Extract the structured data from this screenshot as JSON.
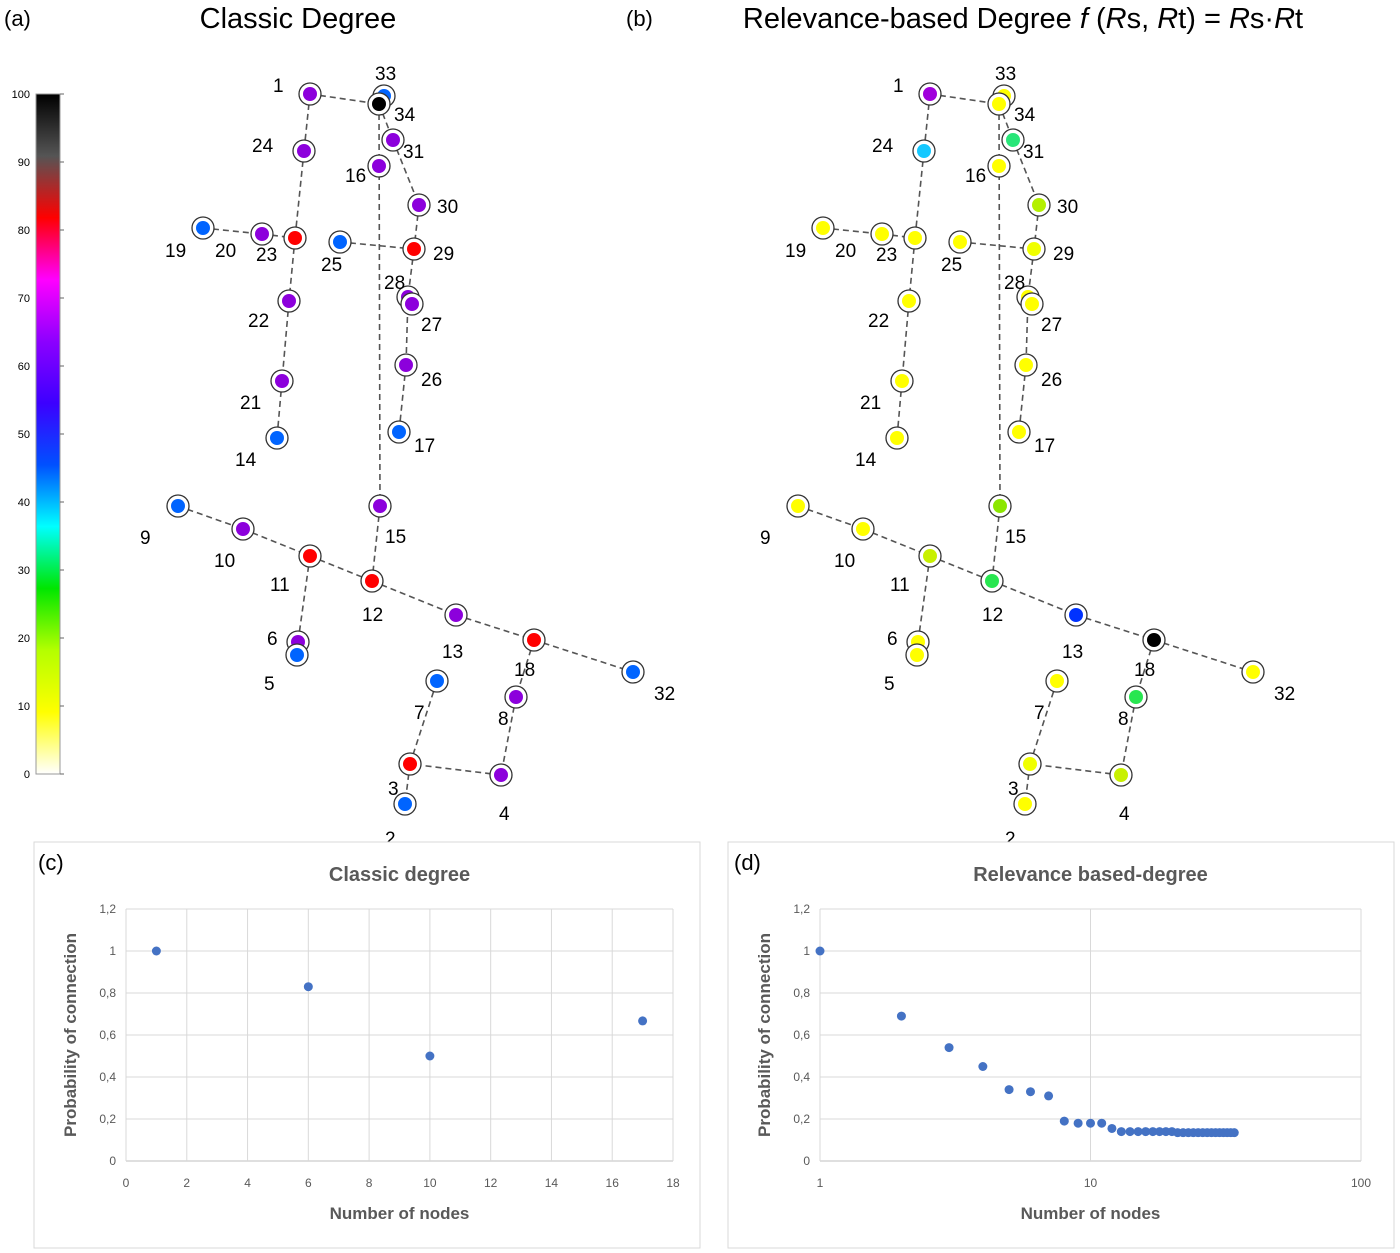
{
  "panels": {
    "a": {
      "tag": "(a)",
      "title": "Classic Degree"
    },
    "b": {
      "tag": "(b)",
      "title_parts": [
        "Relevance-based Degree ",
        "f",
        " (",
        "R",
        "s, ",
        "R",
        "t) = ",
        "R",
        "s·",
        "R",
        "t"
      ]
    },
    "c": {
      "tag": "(c)"
    },
    "d": {
      "tag": "(d)"
    }
  },
  "colorbar": {
    "ticks": [
      "0",
      "10",
      "20",
      "30",
      "40",
      "50",
      "60",
      "70",
      "80",
      "90",
      "100"
    ],
    "stops": [
      "#ffffff",
      "#ffff00",
      "#b4ff00",
      "#00e600",
      "#00ffff",
      "#0050ff",
      "#3c00ff",
      "#8c00ff",
      "#ff00ff",
      "#ff0000",
      "#555555",
      "#000000"
    ]
  },
  "network": {
    "edges": [
      [
        1,
        34
      ],
      [
        1,
        24
      ],
      [
        33,
        34
      ],
      [
        34,
        31
      ],
      [
        31,
        30
      ],
      [
        30,
        29
      ],
      [
        34,
        15
      ],
      [
        24,
        23
      ],
      [
        19,
        20
      ],
      [
        20,
        23
      ],
      [
        23,
        22
      ],
      [
        22,
        21
      ],
      [
        21,
        14
      ],
      [
        25,
        29
      ],
      [
        29,
        28
      ],
      [
        28,
        27
      ],
      [
        28,
        26
      ],
      [
        26,
        17
      ],
      [
        15,
        12
      ],
      [
        9,
        10
      ],
      [
        10,
        11
      ],
      [
        11,
        12
      ],
      [
        12,
        13
      ],
      [
        13,
        18
      ],
      [
        18,
        32
      ],
      [
        11,
        6
      ],
      [
        6,
        5
      ],
      [
        18,
        8
      ],
      [
        8,
        4
      ],
      [
        4,
        3
      ],
      [
        3,
        7
      ],
      [
        3,
        2
      ]
    ],
    "nodes": [
      {
        "id": "1",
        "ca": "#8c00dc",
        "cb": "#a000dc"
      },
      {
        "id": "33",
        "ca": "#0064ff",
        "cb": "#ffff00"
      },
      {
        "id": "34",
        "ca": "#000000",
        "cb": "#ffff00"
      },
      {
        "id": "24",
        "ca": "#8c00dc",
        "cb": "#14c8ff"
      },
      {
        "id": "31",
        "ca": "#8c00dc",
        "cb": "#28e678"
      },
      {
        "id": "16",
        "ca": "#8c00dc",
        "cb": "#ffff00"
      },
      {
        "id": "30",
        "ca": "#8c00dc",
        "cb": "#b4f000"
      },
      {
        "id": "19",
        "ca": "#0064ff",
        "cb": "#ffff00"
      },
      {
        "id": "20",
        "ca": "#8c00dc",
        "cb": "#ffff00"
      },
      {
        "id": "23",
        "ca": "#ff0000",
        "cb": "#ffff00"
      },
      {
        "id": "25",
        "ca": "#0064ff",
        "cb": "#ffff00"
      },
      {
        "id": "29",
        "ca": "#ff0000",
        "cb": "#f0ff00"
      },
      {
        "id": "28",
        "ca": "#8c00dc",
        "cb": "#ffff00"
      },
      {
        "id": "27",
        "ca": "#8c00dc",
        "cb": "#ffff00"
      },
      {
        "id": "22",
        "ca": "#8c00dc",
        "cb": "#ffff00"
      },
      {
        "id": "26",
        "ca": "#8c00dc",
        "cb": "#ffff00"
      },
      {
        "id": "21",
        "ca": "#8c00dc",
        "cb": "#ffff00"
      },
      {
        "id": "14",
        "ca": "#0064ff",
        "cb": "#ffff00"
      },
      {
        "id": "17",
        "ca": "#0064ff",
        "cb": "#ffff00"
      },
      {
        "id": "9",
        "ca": "#0064ff",
        "cb": "#ffff00"
      },
      {
        "id": "15",
        "ca": "#8c00dc",
        "cb": "#8ce600"
      },
      {
        "id": "10",
        "ca": "#8c00dc",
        "cb": "#ffff00"
      },
      {
        "id": "11",
        "ca": "#ff0000",
        "cb": "#c8f000"
      },
      {
        "id": "12",
        "ca": "#ff0000",
        "cb": "#28e650"
      },
      {
        "id": "13",
        "ca": "#8c00dc",
        "cb": "#0032ff"
      },
      {
        "id": "18",
        "ca": "#ff0000",
        "cb": "#000000"
      },
      {
        "id": "6",
        "ca": "#8c00dc",
        "cb": "#ffff00"
      },
      {
        "id": "5",
        "ca": "#0064ff",
        "cb": "#ffff00"
      },
      {
        "id": "32",
        "ca": "#0064ff",
        "cb": "#ffff00"
      },
      {
        "id": "7",
        "ca": "#0064ff",
        "cb": "#ffff00"
      },
      {
        "id": "8",
        "ca": "#8c00dc",
        "cb": "#28e650"
      },
      {
        "id": "3",
        "ca": "#ff0000",
        "cb": "#f0ff00"
      },
      {
        "id": "4",
        "ca": "#8c00dc",
        "cb": "#c8f000"
      },
      {
        "id": "2",
        "ca": "#0064ff",
        "cb": "#ffff00"
      }
    ]
  },
  "chart_data": [
    {
      "type": "scatter",
      "title": "Classic degree",
      "xlabel": "Number of nodes",
      "ylabel": "Probability of connection",
      "xlim": [
        0,
        18
      ],
      "ylim": [
        0,
        1.2
      ],
      "x_scale": "linear",
      "x_ticks": [
        "0",
        "2",
        "4",
        "6",
        "8",
        "10",
        "12",
        "14",
        "16",
        "18"
      ],
      "y_ticks": [
        "0",
        "0,2",
        "0,4",
        "0,6",
        "0,8",
        "1",
        "1,2"
      ],
      "grid": true,
      "color": "#4472c4",
      "x": [
        1,
        6,
        10,
        17
      ],
      "y": [
        1.0,
        0.83,
        0.5,
        0.667
      ]
    },
    {
      "type": "scatter",
      "title": "Relevance based-degree",
      "xlabel": "Number of nodes",
      "ylabel": "Probability of connection",
      "xlim": [
        1,
        100
      ],
      "ylim": [
        0,
        1.2
      ],
      "x_scale": "log",
      "x_ticks": [
        "1",
        "10",
        "100"
      ],
      "y_ticks": [
        "0",
        "0,2",
        "0,4",
        "0,6",
        "0,8",
        "1",
        "1,2"
      ],
      "grid": true,
      "color": "#4472c4",
      "x": [
        1,
        2,
        3,
        4,
        5,
        6,
        7,
        8,
        9,
        10,
        11,
        12,
        13,
        14,
        15,
        16,
        17,
        18,
        19,
        20,
        21,
        22,
        23,
        24,
        25,
        26,
        27,
        28,
        29,
        30,
        31,
        32,
        33,
        34
      ],
      "y": [
        1.0,
        0.69,
        0.54,
        0.45,
        0.34,
        0.33,
        0.31,
        0.19,
        0.18,
        0.18,
        0.18,
        0.155,
        0.14,
        0.14,
        0.14,
        0.14,
        0.14,
        0.14,
        0.14,
        0.14,
        0.135,
        0.135,
        0.135,
        0.135,
        0.135,
        0.135,
        0.135,
        0.135,
        0.135,
        0.135,
        0.135,
        0.135,
        0.135,
        0.135
      ]
    }
  ]
}
